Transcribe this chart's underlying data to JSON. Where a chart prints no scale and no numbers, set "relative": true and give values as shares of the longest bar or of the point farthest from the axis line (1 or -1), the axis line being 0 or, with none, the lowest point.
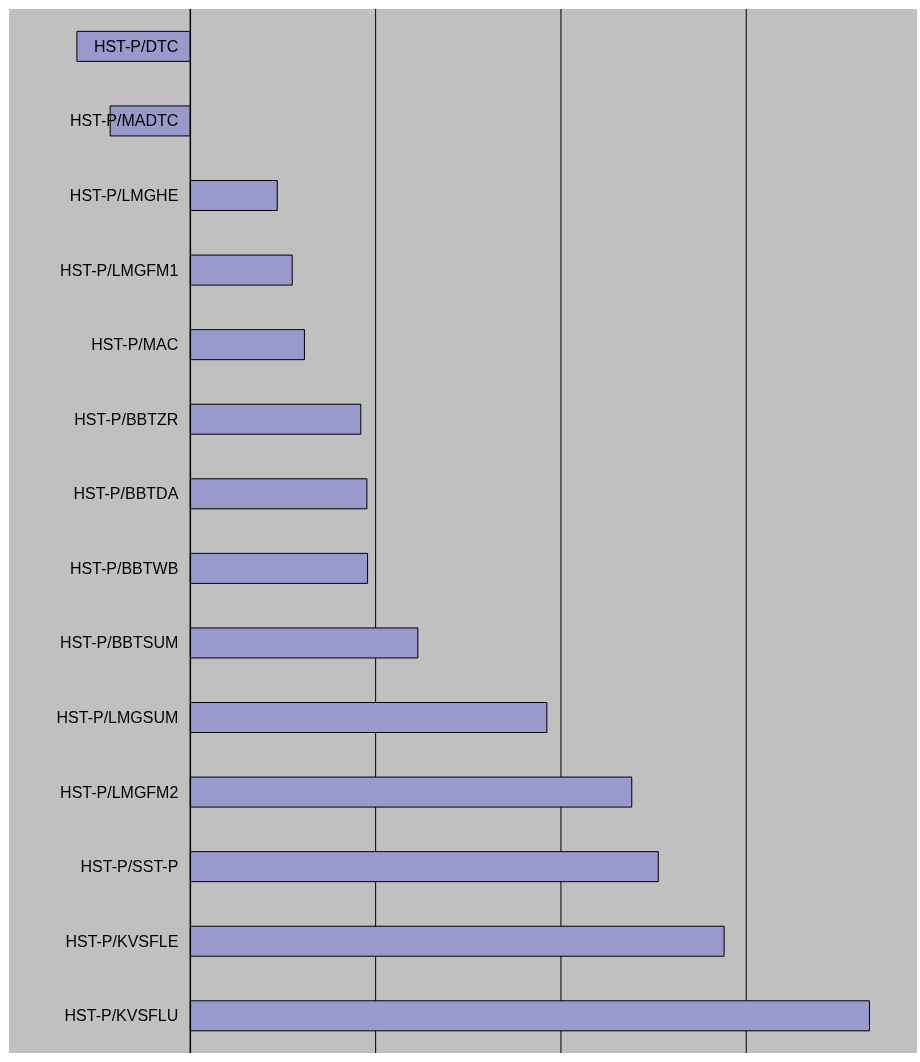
{
  "chart_data": {
    "type": "bar",
    "orientation": "horizontal",
    "relative": true,
    "grid": "x",
    "color": "#9999cc",
    "categories": [
      "HST-P/DTC",
      "HST-P/MADTC",
      "HST-P/LMGHE",
      "HST-P/LMGFM1",
      "HST-P/MAC",
      "HST-P/BBTZR",
      "HST-P/BBTDA",
      "HST-P/BBTWB",
      "HST-P/BBTSUM",
      "HST-P/LMGSUM",
      "HST-P/LMGFM2",
      "HST-P/SST-P",
      "HST-P/KVSFLE",
      "HST-P/KVSFLU"
    ],
    "values": [
      -0.167,
      -0.118,
      0.128,
      0.15,
      0.168,
      0.251,
      0.26,
      0.261,
      0.335,
      0.525,
      0.65,
      0.689,
      0.786,
      1
    ]
  }
}
